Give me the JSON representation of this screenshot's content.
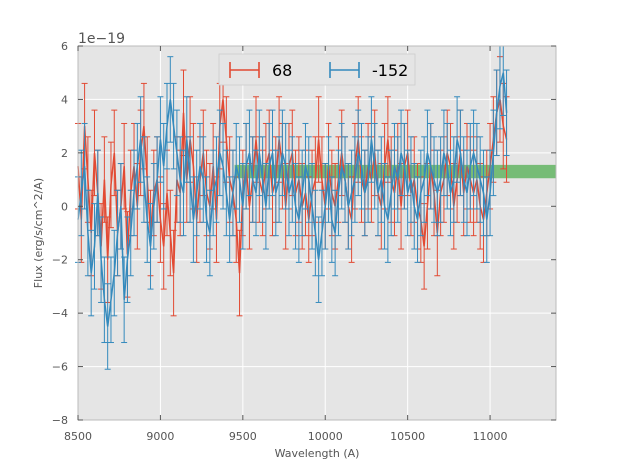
{
  "chart_data": {
    "type": "line",
    "title": "",
    "xlabel": "Wavelength (A)",
    "ylabel": "Flux (erg/s/cm^2/A)",
    "y_offset_label": "1e−19",
    "xlim": [
      8500,
      11400
    ],
    "ylim": [
      -8,
      6
    ],
    "xticks": [
      8500,
      9000,
      9500,
      10000,
      10500,
      11000
    ],
    "xtick_labels": [
      "8500",
      "9000",
      "9500",
      "10000",
      "10500",
      "11000"
    ],
    "yticks": [
      -8,
      -6,
      -4,
      -2,
      0,
      2,
      4,
      6
    ],
    "ytick_labels": [
      "−8",
      "−6",
      "−4",
      "−2",
      "0",
      "2",
      "4",
      "6"
    ],
    "grid": true,
    "legend_position": "top-center",
    "x_start": 8500,
    "x_step": 20,
    "series": [
      {
        "name": "68",
        "color": "#e24a33",
        "error": 1.6,
        "values": [
          1.5,
          -0.5,
          3.0,
          1.0,
          -1.0,
          2.0,
          0.5,
          -1.5,
          1.0,
          -2.0,
          0.8,
          2.0,
          -1.0,
          0.0,
          1.5,
          -1.8,
          0.5,
          1.5,
          0.0,
          2.0,
          3.0,
          1.0,
          -1.0,
          0.5,
          1.0,
          -0.5,
          -1.5,
          0.5,
          -1.0,
          -2.5,
          1.0,
          0.5,
          3.5,
          1.0,
          2.5,
          1.5,
          -0.5,
          1.0,
          2.0,
          0.5,
          0.0,
          1.5,
          -0.5,
          3.0,
          4.0,
          2.5,
          1.0,
          0.5,
          -0.5,
          -2.5,
          0.5,
          1.5,
          0.0,
          1.0,
          2.5,
          1.0,
          0.5,
          1.5,
          2.0,
          0.5,
          1.0,
          2.5,
          1.5,
          0.0,
          1.5,
          2.0,
          0.5,
          1.0,
          0.0,
          0.5,
          -0.5,
          0.5,
          1.0,
          2.5,
          1.0,
          0.0,
          1.5,
          0.5,
          0.0,
          1.0,
          2.0,
          1.0,
          0.0,
          -0.5,
          1.5,
          2.5,
          1.0,
          0.5,
          1.5,
          1.0,
          2.0,
          0.5,
          0.0,
          1.5,
          2.5,
          1.0,
          0.5,
          1.5,
          0.0,
          1.5,
          2.0,
          0.5,
          1.0,
          0.0,
          -0.5,
          -1.5,
          0.0,
          1.5,
          0.5,
          -1.0,
          0.5,
          1.0,
          2.0,
          1.5,
          0.0,
          1.0,
          2.0,
          0.5,
          1.5,
          1.0,
          0.5,
          1.0,
          0.0,
          -0.5,
          0.5,
          1.5,
          2.5,
          3.5,
          4.0,
          3.0,
          2.5
        ]
      },
      {
        "name": "-152",
        "color": "#348abd",
        "error": 1.6,
        "values": [
          -0.5,
          0.5,
          1.5,
          -1.0,
          -2.5,
          -1.5,
          0.5,
          -2.0,
          -3.5,
          -4.5,
          -3.5,
          -2.5,
          -1.0,
          0.0,
          -3.5,
          -2.0,
          -1.0,
          0.5,
          1.5,
          2.5,
          1.0,
          -0.5,
          -1.5,
          0.0,
          1.0,
          2.5,
          1.5,
          3.0,
          4.0,
          3.0,
          2.0,
          1.0,
          0.5,
          2.5,
          1.0,
          -0.5,
          0.5,
          1.5,
          1.0,
          -0.5,
          -1.0,
          0.5,
          1.0,
          2.0,
          1.5,
          0.5,
          -0.5,
          0.5,
          1.5,
          1.0,
          0.0,
          1.5,
          2.0,
          1.0,
          0.5,
          2.0,
          1.0,
          0.0,
          1.5,
          2.0,
          0.5,
          1.0,
          2.0,
          1.5,
          0.5,
          1.0,
          0.0,
          -0.5,
          0.5,
          1.5,
          1.0,
          0.0,
          -1.0,
          -2.0,
          -1.0,
          0.0,
          1.0,
          -0.5,
          -1.0,
          0.5,
          1.5,
          1.0,
          0.0,
          0.5,
          1.0,
          2.0,
          1.5,
          0.5,
          1.0,
          2.5,
          1.5,
          0.5,
          1.0,
          0.0,
          -0.5,
          0.5,
          1.5,
          1.0,
          2.0,
          1.5,
          0.5,
          1.0,
          0.0,
          -0.5,
          0.5,
          1.0,
          2.0,
          1.5,
          1.0,
          0.5,
          1.0,
          2.0,
          1.5,
          0.5,
          1.0,
          2.5,
          2.0,
          1.0,
          0.5,
          1.5,
          2.0,
          1.5,
          1.0,
          0.5,
          -0.5,
          0.5,
          2.0,
          3.5,
          4.5,
          5.0,
          3.5
        ]
      }
    ],
    "band": {
      "x_start": 9450,
      "x_end": 11400,
      "y_low": 1.05,
      "y_high": 1.55,
      "color": "#2ca02c",
      "opacity": 0.6
    }
  }
}
